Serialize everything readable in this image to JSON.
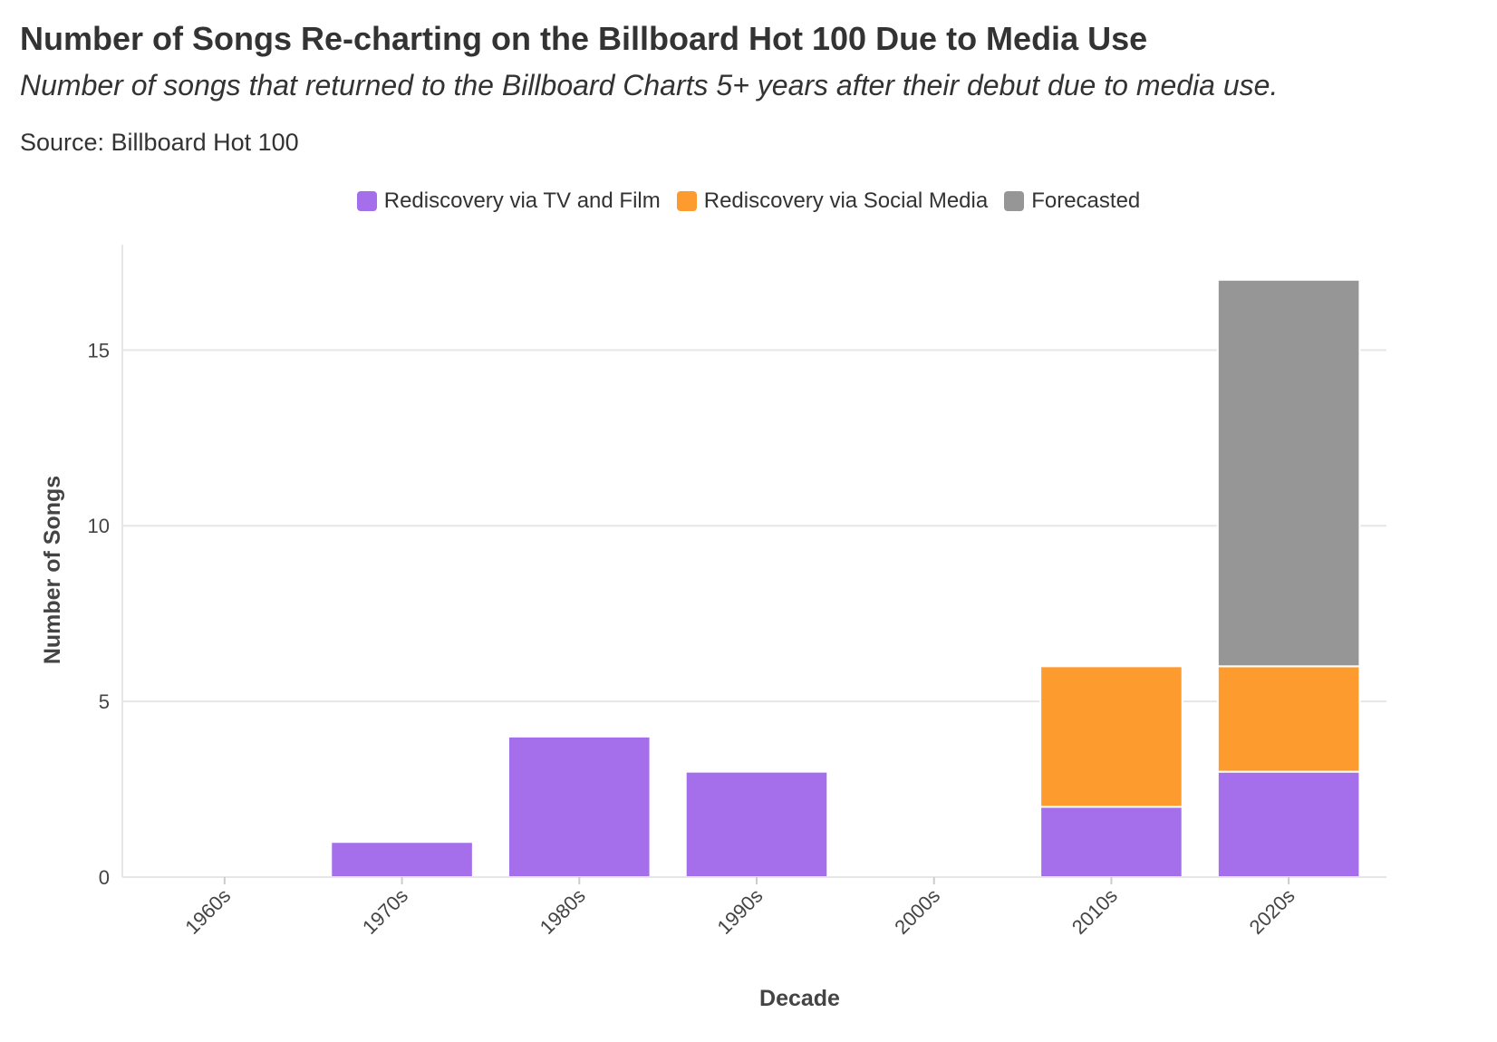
{
  "header": {
    "title": "Number of Songs Re-charting on the Billboard Hot 100 Due to Media Use",
    "subtitle": "Number of songs that returned to the Billboard Charts 5+ years after their debut due to media use.",
    "source": "Source: Billboard Hot 100"
  },
  "chart_data": {
    "type": "bar",
    "stacked": true,
    "categories": [
      "1960s",
      "1970s",
      "1980s",
      "1990s",
      "2000s",
      "2010s",
      "2020s"
    ],
    "series": [
      {
        "name": "Rediscovery via TV and Film",
        "color": "#a56eea",
        "values": [
          0,
          1,
          4,
          3,
          0,
          2,
          3
        ]
      },
      {
        "name": "Rediscovery via Social Media",
        "color": "#fe9b2e",
        "values": [
          0,
          0,
          0,
          0,
          0,
          4,
          3
        ]
      },
      {
        "name": "Forecasted",
        "color": "#969696",
        "values": [
          0,
          0,
          0,
          0,
          0,
          0,
          11
        ]
      }
    ],
    "xlabel": "Decade",
    "ylabel": "Number of Songs",
    "ylim": [
      0,
      18
    ],
    "yticks": [
      0,
      5,
      10,
      15
    ],
    "grid": true,
    "legend_position": "top-center"
  }
}
